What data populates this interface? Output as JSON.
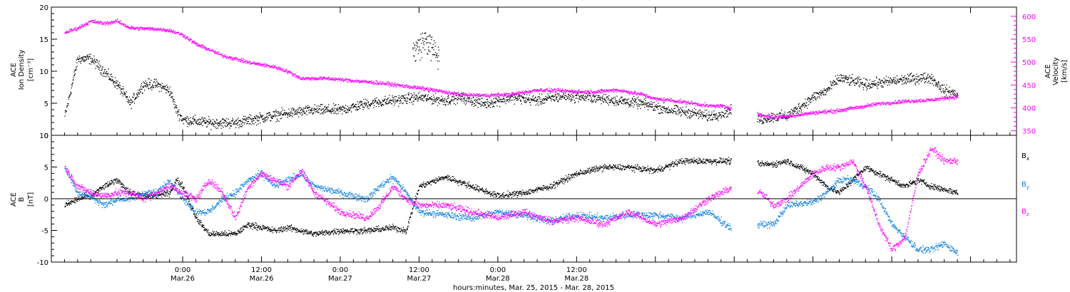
{
  "chart_data": [
    {
      "type": "scatter",
      "panel": "top",
      "left_axis": {
        "lines": [
          "ACE",
          "Ion Density",
          "[cm⁻³]"
        ],
        "ylim": [
          0,
          20
        ],
        "ticks": [
          0,
          5,
          10,
          15,
          20
        ],
        "tick_labels": [
          "0",
          "5",
          "10",
          "15",
          "20"
        ]
      },
      "right_axis": {
        "lines": [
          "ACE",
          "Velocity",
          "[km/s]"
        ],
        "ylim": [
          340,
          620
        ],
        "ticks": [
          350,
          400,
          450,
          500,
          550,
          600
        ],
        "tick_labels": [
          "350",
          "400",
          "450",
          "500",
          "550",
          "600"
        ],
        "color": "#ff00ff"
      },
      "series": [
        {
          "key": "density",
          "color": "#000000",
          "axis": "left",
          "noise": 1.2,
          "points": [
            [
              -18,
              3
            ],
            [
              -16,
              12
            ],
            [
              -14,
              12
            ],
            [
              -12,
              10
            ],
            [
              -10,
              8
            ],
            [
              -8,
              5
            ],
            [
              -6,
              8
            ],
            [
              -4,
              8
            ],
            [
              -2,
              7
            ],
            [
              -1,
              4
            ],
            [
              0,
              2.5
            ],
            [
              4,
              2
            ],
            [
              8,
              2
            ],
            [
              12,
              2.8
            ],
            [
              16,
              3.5
            ],
            [
              20,
              4
            ],
            [
              24,
              4
            ],
            [
              28,
              5
            ],
            [
              32,
              5.5
            ],
            [
              36,
              6
            ],
            [
              40,
              5.5
            ],
            [
              42,
              6
            ],
            [
              46,
              5
            ],
            [
              50,
              6
            ],
            [
              54,
              5.5
            ],
            [
              58,
              6.2
            ],
            [
              62,
              6
            ],
            [
              66,
              5.5
            ],
            [
              70,
              5
            ],
            [
              74,
              4
            ],
            [
              78,
              3.5
            ],
            [
              80,
              3
            ],
            [
              82,
              3.5
            ],
            [
              84,
              4
            ],
            [
              86,
              3
            ],
            [
              88,
              2.5
            ],
            [
              90,
              3
            ],
            [
              92,
              3
            ],
            [
              96,
              6
            ],
            [
              98,
              7
            ],
            [
              100,
              9
            ],
            [
              104,
              8
            ],
            [
              108,
              8.5
            ],
            [
              112,
              9
            ],
            [
              114,
              9
            ],
            [
              116,
              7
            ],
            [
              118,
              6.5
            ]
          ]
        },
        {
          "key": "density_spike",
          "color": "#000000",
          "axis": "left",
          "noise": 3,
          "points": [
            [
              35,
              13
            ],
            [
              37,
              15
            ],
            [
              39,
              12
            ]
          ]
        },
        {
          "key": "velocity",
          "color": "#ff00ff",
          "axis": "right",
          "noise": 6,
          "points": [
            [
              -18,
              565
            ],
            [
              -16,
              575
            ],
            [
              -14,
              590
            ],
            [
              -12,
              585
            ],
            [
              -10,
              590
            ],
            [
              -8,
              575
            ],
            [
              -4,
              573
            ],
            [
              -2,
              570
            ],
            [
              0,
              560
            ],
            [
              2,
              540
            ],
            [
              4,
              528
            ],
            [
              6,
              515
            ],
            [
              8,
              508
            ],
            [
              10,
              500
            ],
            [
              14,
              490
            ],
            [
              16,
              480
            ],
            [
              18,
              465
            ],
            [
              22,
              465
            ],
            [
              26,
              460
            ],
            [
              30,
              455
            ],
            [
              34,
              448
            ],
            [
              38,
              440
            ],
            [
              42,
              430
            ],
            [
              46,
              428
            ],
            [
              50,
              430
            ],
            [
              54,
              440
            ],
            [
              58,
              438
            ],
            [
              62,
              435
            ],
            [
              66,
              440
            ],
            [
              70,
              430
            ],
            [
              72,
              420
            ],
            [
              74,
              418
            ],
            [
              78,
              410
            ],
            [
              80,
              405
            ],
            [
              82,
              405
            ],
            [
              84,
              400
            ],
            [
              86,
              398
            ],
            [
              88,
              385
            ],
            [
              90,
              380
            ],
            [
              92,
              382
            ],
            [
              96,
              390
            ],
            [
              100,
              395
            ],
            [
              104,
              405
            ],
            [
              106,
              410
            ],
            [
              110,
              415
            ],
            [
              114,
              418
            ],
            [
              116,
              422
            ],
            [
              118,
              425
            ]
          ]
        }
      ]
    },
    {
      "type": "scatter",
      "panel": "bottom",
      "left_axis": {
        "lines": [
          "ACE",
          "B",
          "[nT]"
        ],
        "ylim": [
          -10,
          10
        ],
        "ticks": [
          -10,
          -5,
          0,
          5,
          10
        ],
        "tick_labels": [
          "-10",
          "-5",
          "0",
          "5",
          "10"
        ]
      },
      "zero_line": true,
      "legend": [
        "B",
        "B",
        "B"
      ],
      "legend_subscripts": [
        "x",
        "y",
        "z"
      ],
      "series": [
        {
          "key": "bx",
          "color": "#000000",
          "noise": 0.7,
          "points": [
            [
              -18,
              -1
            ],
            [
              -16,
              0
            ],
            [
              -14,
              0.5
            ],
            [
              -12,
              2
            ],
            [
              -10,
              3
            ],
            [
              -8,
              1
            ],
            [
              -6,
              0.5
            ],
            [
              -4,
              0.5
            ],
            [
              -2,
              1
            ],
            [
              -1,
              3
            ],
            [
              0,
              2
            ],
            [
              2,
              -3
            ],
            [
              4,
              -5.5
            ],
            [
              8,
              -5.5
            ],
            [
              10,
              -4
            ],
            [
              14,
              -5
            ],
            [
              16,
              -4.5
            ],
            [
              20,
              -5.5
            ],
            [
              24,
              -5
            ],
            [
              28,
              -5
            ],
            [
              32,
              -4.5
            ],
            [
              34,
              -5
            ],
            [
              36,
              2
            ],
            [
              40,
              3.5
            ],
            [
              44,
              2
            ],
            [
              48,
              0.5
            ],
            [
              52,
              1
            ],
            [
              56,
              2
            ],
            [
              60,
              4
            ],
            [
              64,
              5
            ],
            [
              68,
              5
            ],
            [
              72,
              4.5
            ],
            [
              76,
              6
            ],
            [
              80,
              6
            ],
            [
              84,
              6
            ],
            [
              88,
              5.5
            ],
            [
              90,
              5.5
            ],
            [
              92,
              6
            ],
            [
              96,
              4
            ],
            [
              98,
              2
            ],
            [
              100,
              1
            ],
            [
              102,
              3
            ],
            [
              104,
              5
            ],
            [
              106,
              4
            ],
            [
              108,
              3
            ],
            [
              110,
              2
            ],
            [
              112,
              3
            ],
            [
              114,
              2
            ],
            [
              116,
              1.5
            ],
            [
              118,
              1
            ]
          ]
        },
        {
          "key": "by",
          "color": "#1080e0",
          "noise": 0.8,
          "points": [
            [
              -18,
              5
            ],
            [
              -16,
              1
            ],
            [
              -14,
              0.5
            ],
            [
              -12,
              -1
            ],
            [
              -10,
              0
            ],
            [
              -8,
              0
            ],
            [
              -6,
              1
            ],
            [
              -4,
              1
            ],
            [
              -2,
              3
            ],
            [
              0,
              0
            ],
            [
              2,
              -2
            ],
            [
              4,
              -2
            ],
            [
              6,
              0
            ],
            [
              8,
              1
            ],
            [
              10,
              3
            ],
            [
              12,
              4
            ],
            [
              14,
              2
            ],
            [
              16,
              3
            ],
            [
              18,
              4
            ],
            [
              20,
              2
            ],
            [
              24,
              1
            ],
            [
              28,
              0
            ],
            [
              30,
              2
            ],
            [
              32,
              3.5
            ],
            [
              34,
              1
            ],
            [
              36,
              -2
            ],
            [
              40,
              -2.5
            ],
            [
              44,
              -3
            ],
            [
              48,
              -2
            ],
            [
              52,
              -2.5
            ],
            [
              56,
              -3.5
            ],
            [
              60,
              -2.5
            ],
            [
              64,
              -3
            ],
            [
              68,
              -2.5
            ],
            [
              72,
              -2.5
            ],
            [
              76,
              -3
            ],
            [
              80,
              -2
            ],
            [
              84,
              -5
            ],
            [
              88,
              -4
            ],
            [
              90,
              -4
            ],
            [
              92,
              -1
            ],
            [
              96,
              -0.5
            ],
            [
              98,
              1
            ],
            [
              100,
              3
            ],
            [
              102,
              3
            ],
            [
              104,
              2
            ],
            [
              106,
              0
            ],
            [
              108,
              -4
            ],
            [
              110,
              -6
            ],
            [
              112,
              -8
            ],
            [
              114,
              -8
            ],
            [
              116,
              -7
            ],
            [
              118,
              -8.5
            ]
          ]
        },
        {
          "key": "bz",
          "color": "#ff00ff",
          "noise": 0.8,
          "points": [
            [
              -18,
              5
            ],
            [
              -16,
              2
            ],
            [
              -14,
              1
            ],
            [
              -12,
              0.5
            ],
            [
              -10,
              1
            ],
            [
              -8,
              1
            ],
            [
              -6,
              0
            ],
            [
              -4,
              1
            ],
            [
              -2,
              2
            ],
            [
              0,
              1
            ],
            [
              2,
              0
            ],
            [
              4,
              3
            ],
            [
              6,
              1
            ],
            [
              8,
              -3
            ],
            [
              10,
              2
            ],
            [
              12,
              4
            ],
            [
              14,
              3
            ],
            [
              16,
              2
            ],
            [
              18,
              4.5
            ],
            [
              20,
              1
            ],
            [
              24,
              -2
            ],
            [
              28,
              -3
            ],
            [
              30,
              -1
            ],
            [
              32,
              2
            ],
            [
              34,
              0
            ],
            [
              36,
              -1
            ],
            [
              40,
              -1
            ],
            [
              44,
              -2
            ],
            [
              48,
              -3
            ],
            [
              52,
              -2
            ],
            [
              56,
              -3.5
            ],
            [
              60,
              -3
            ],
            [
              64,
              -4
            ],
            [
              68,
              -2
            ],
            [
              72,
              -4
            ],
            [
              76,
              -3
            ],
            [
              80,
              0
            ],
            [
              84,
              2
            ],
            [
              88,
              1
            ],
            [
              90,
              -1
            ],
            [
              92,
              0
            ],
            [
              96,
              4
            ],
            [
              98,
              5
            ],
            [
              100,
              5
            ],
            [
              102,
              6
            ],
            [
              104,
              2
            ],
            [
              106,
              -4
            ],
            [
              108,
              -8
            ],
            [
              110,
              -6
            ],
            [
              112,
              4
            ],
            [
              114,
              8
            ],
            [
              116,
              6
            ],
            [
              118,
              6
            ]
          ]
        }
      ]
    }
  ],
  "x_axis": {
    "range_hours": [
      -20,
      127
    ],
    "ticks": [
      0,
      12,
      24,
      36,
      48,
      60,
      72,
      84,
      96,
      108,
      120
    ],
    "major_labels": [
      {
        "hours": 0,
        "time": "0:00",
        "date": "Mar.26"
      },
      {
        "hours": 12,
        "time": "12:00",
        "date": "Mar.26"
      },
      {
        "hours": 24,
        "time": "0:00",
        "date": "Mar.27"
      },
      {
        "hours": 36,
        "time": "12:00",
        "date": "Mar.27"
      },
      {
        "hours": 48,
        "time": "0:00",
        "date": "Mar.28"
      },
      {
        "hours": 60,
        "time": "12:00",
        "date": "Mar.28"
      }
    ],
    "title": "hours:minutes, Mar. 25, 2015 - Mar. 28, 2015"
  }
}
